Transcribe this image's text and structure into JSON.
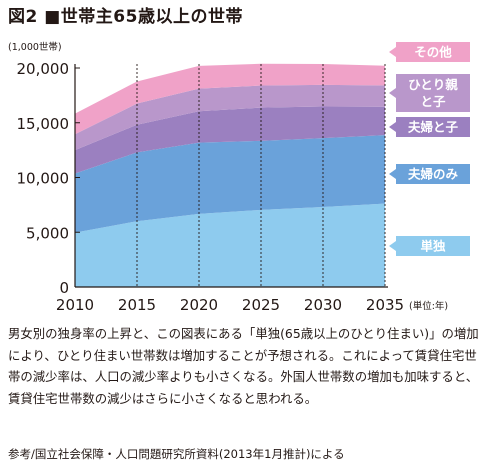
{
  "figure": {
    "title": "図2 ■世帯主65歳以上の世帯",
    "caption": "男女別の独身率の上昇と、この図表にある「単独(65歳以上のひとり住まい)」の増加により、ひとり住まい世帯数は増加することが予想される。これによって賃貸住宅世帯の減少率は、人口の減少率よりも小さくなる。外国人世帯数の増加も加味すると、賃貸住宅世帯数の減少はさらに小さくなると思われる。",
    "source": "参考/国立社会保障・人口問題研究所資料(2013年1月推計)による"
  },
  "chart_data": {
    "type": "area",
    "stacked": true,
    "y_unit_label": "(1,000世帯)",
    "x_unit_label": "(単位:年)",
    "x": [
      2010,
      2015,
      2020,
      2025,
      2030,
      2035
    ],
    "x_tick_labels": [
      "2010",
      "2015",
      "2020",
      "2025",
      "2030",
      "2035"
    ],
    "ylim": [
      0,
      20000
    ],
    "y_ticks": [
      0,
      5000,
      10000,
      15000,
      20000
    ],
    "y_tick_labels": [
      "0",
      "5,000",
      "10,000",
      "15,000",
      "20,000"
    ],
    "grid": "vertical dashed lines at each year",
    "legend": "right, arrow-shaped labels aligned with each band",
    "series": [
      {
        "name": "単独",
        "color": "#8ecbee",
        "values": [
          4970,
          6010,
          6680,
          7040,
          7300,
          7620
        ]
      },
      {
        "name": "夫婦のみ",
        "color": "#6aa2da",
        "values": [
          5400,
          6280,
          6500,
          6310,
          6300,
          6250
        ]
      },
      {
        "name": "夫婦と子",
        "color": "#9b80c0",
        "values": [
          2130,
          2530,
          2870,
          3030,
          2880,
          2590
        ]
      },
      {
        "name": "ひとり親と子",
        "color": "#b997cb",
        "values": [
          1450,
          1940,
          2070,
          2020,
          1980,
          1950
        ]
      },
      {
        "name": "その他",
        "color": "#f0a2c8",
        "values": [
          1880,
          2010,
          2070,
          1990,
          1900,
          1800
        ]
      }
    ]
  }
}
